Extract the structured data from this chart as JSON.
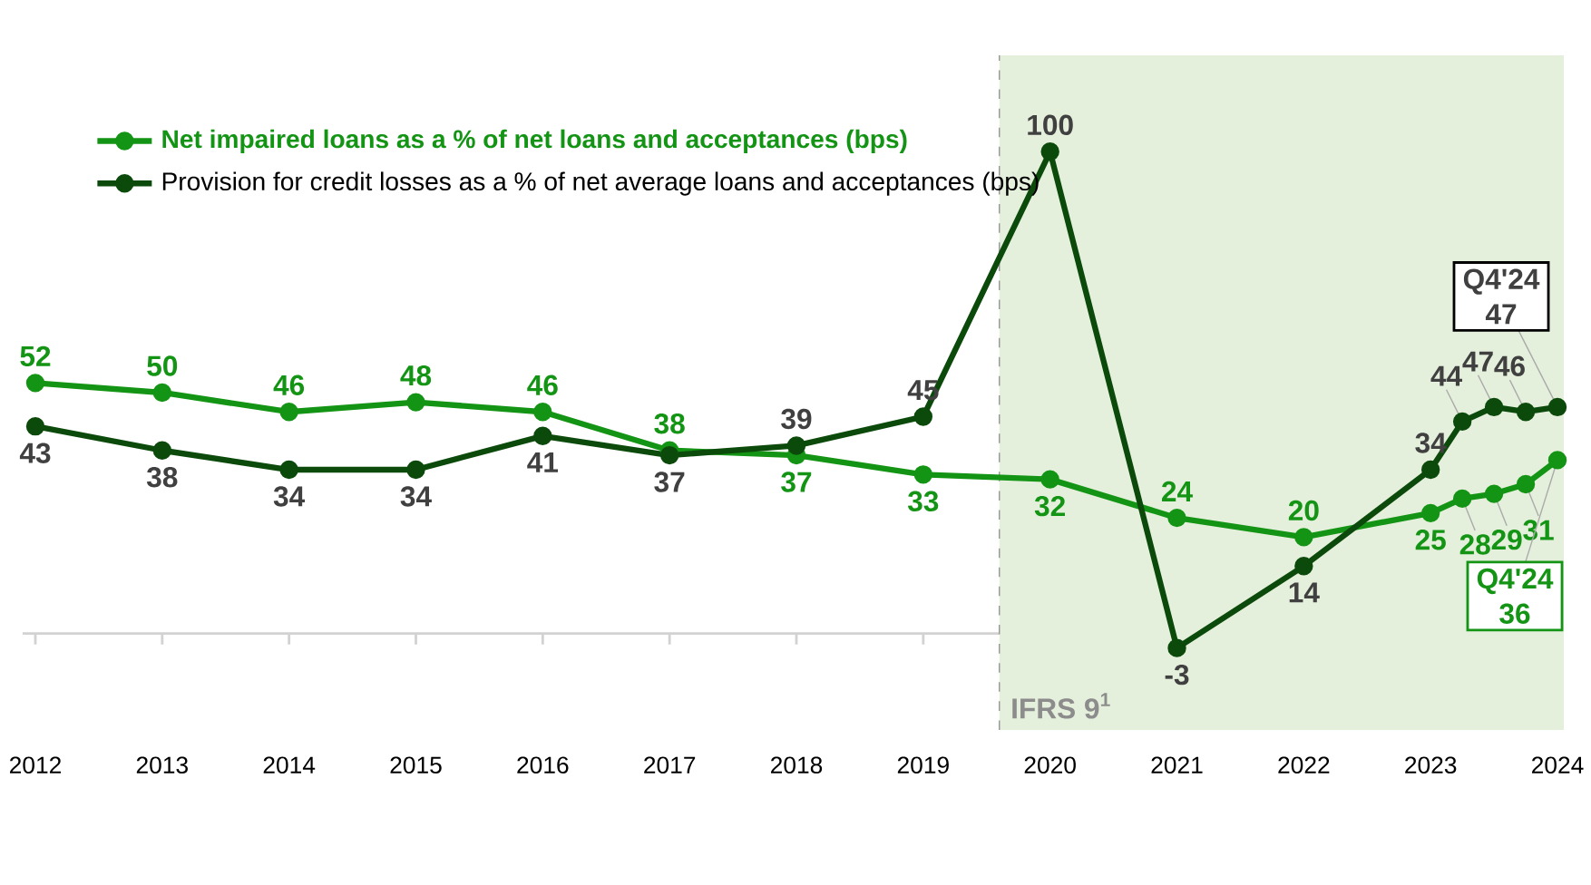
{
  "chart_data": {
    "type": "line",
    "x": [
      2012,
      2013,
      2014,
      2015,
      2016,
      2017,
      2018,
      2019,
      2020,
      2021,
      2022,
      2023,
      2023.25,
      2023.5,
      2023.75,
      2024
    ],
    "xlim": [
      2011.9,
      2024.05
    ],
    "ylim": [
      -20,
      120
    ],
    "xticks": [
      2012,
      2013,
      2014,
      2015,
      2016,
      2017,
      2018,
      2019,
      2020,
      2021,
      2022,
      2023,
      2024
    ],
    "tick_labels": "x",
    "marker": "circle",
    "line_style": "solid",
    "legend": "top left",
    "grid": false,
    "series": [
      {
        "name": "Net impaired loans as a % of net loans and acceptances (bps)",
        "color": "#149414",
        "values": [
          52,
          50,
          46,
          48,
          46,
          38,
          37,
          33,
          32,
          24,
          20,
          25,
          28,
          29,
          31,
          36
        ],
        "value_labels": [
          "52",
          "50",
          "46",
          "48",
          "46",
          "38",
          "37",
          "33",
          "32",
          "24",
          "20",
          "25",
          "28",
          "29",
          "31",
          null
        ]
      },
      {
        "name": "Provision for credit losses as a % of net average loans and acceptances (bps)",
        "color": "#0b4a0b",
        "values": [
          43,
          38,
          34,
          34,
          41,
          37,
          39,
          45,
          100,
          -3,
          14,
          34,
          44,
          47,
          46,
          47
        ],
        "value_labels": [
          "43",
          "38",
          "34",
          "34",
          "41",
          "37",
          "39",
          "45",
          "100",
          "-3",
          "14",
          "34",
          "44",
          "47",
          "46",
          null
        ]
      }
    ],
    "bands": [
      {
        "axis": "x",
        "from": 2019.6,
        "to": 2024.05,
        "label": "IFRS 9$^{1}$",
        "color": "#e5f0dc"
      }
    ],
    "ref_lines": [
      {
        "axis": "x",
        "value": 2019.6,
        "color": "#969696",
        "line_style": "dashed"
      }
    ],
    "annotations": [
      {
        "text": "Q4'24 47",
        "x": 2024,
        "y": 47
      },
      {
        "text": "Q4'24 36",
        "x": 2024,
        "y": 36
      }
    ]
  }
}
